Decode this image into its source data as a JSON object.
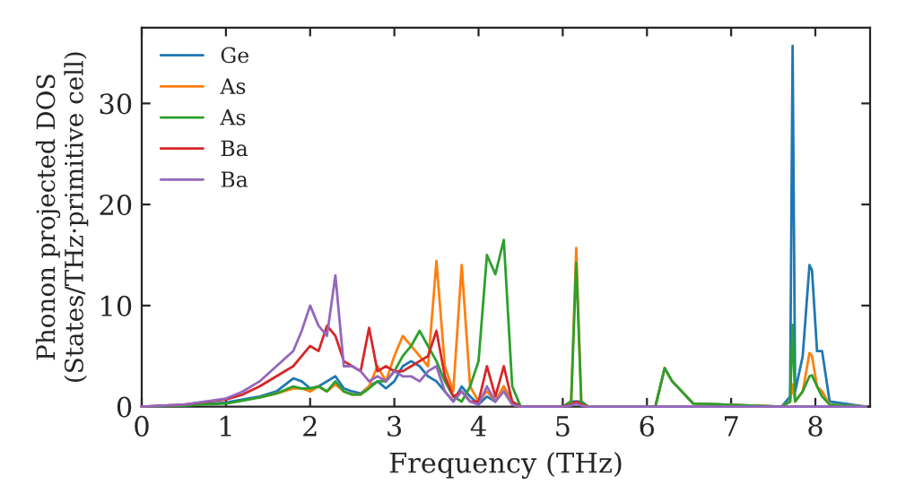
{
  "chart_data": {
    "type": "line",
    "xlabel": "Frequency (THz)",
    "ylabel": "Phonon projected DOS\n(States/THz·primitive cell)",
    "x": [
      0,
      0.5,
      1.0,
      1.2,
      1.4,
      1.6,
      1.8,
      1.9,
      2.0,
      2.1,
      2.2,
      2.3,
      2.4,
      2.5,
      2.6,
      2.7,
      2.8,
      2.9,
      3.0,
      3.1,
      3.2,
      3.3,
      3.4,
      3.5,
      3.6,
      3.7,
      3.8,
      3.9,
      4.0,
      4.1,
      4.2,
      4.3,
      4.4,
      4.5,
      5.0,
      5.1,
      5.16,
      5.22,
      5.3,
      6.1,
      6.21,
      6.3,
      6.55,
      7.6,
      7.7,
      7.73,
      7.76,
      7.85,
      7.93,
      7.96,
      8.02,
      8.08,
      8.17,
      8.6
    ],
    "series": [
      {
        "name": "Ge",
        "color": "#1f77b4",
        "values": [
          0,
          0.1,
          0.4,
          0.7,
          1.0,
          1.5,
          2.8,
          2.5,
          1.8,
          2.0,
          2.5,
          3.0,
          1.8,
          1.5,
          1.3,
          2.0,
          2.5,
          1.8,
          2.5,
          4.0,
          4.5,
          4.0,
          3.0,
          2.5,
          1.5,
          0.5,
          2.0,
          1.0,
          0.2,
          1.0,
          0.5,
          2.0,
          0.5,
          0,
          0,
          0.5,
          null,
          0.5,
          0,
          0,
          3.8,
          2.5,
          0.3,
          0,
          1,
          35.7,
          1.5,
          5,
          14,
          13.5,
          5.5,
          5.5,
          0.5,
          0
        ]
      },
      {
        "name": "As",
        "color": "#ff7f0e",
        "values": [
          null,
          null,
          null,
          null,
          0.9,
          1.3,
          1.8,
          1.8,
          1.5,
          2.0,
          1.5,
          2.2,
          1.5,
          1.2,
          1.2,
          2.0,
          4.0,
          2.5,
          5.0,
          7.0,
          6.0,
          5.0,
          4.0,
          14.4,
          4.0,
          1.5,
          14.0,
          2.0,
          0.5,
          1.5,
          0.5,
          2.0,
          0.2,
          0,
          0,
          0.5,
          15.7,
          0.5,
          0,
          0,
          3.8,
          2.5,
          0.3,
          0,
          0.5,
          2.2,
          0.5,
          1.5,
          5.3,
          5.0,
          2.0,
          1.5,
          0.2,
          0
        ]
      },
      {
        "name": "As",
        "color": "#2ca02c",
        "values": [
          0,
          0.1,
          0.3,
          0.6,
          0.9,
          1.3,
          2.0,
          1.8,
          1.8,
          2.0,
          1.5,
          2.5,
          1.5,
          1.2,
          1.2,
          1.8,
          2.5,
          2.5,
          3.5,
          5.0,
          6.0,
          7.5,
          6.0,
          4.5,
          2.5,
          1.0,
          0.5,
          2.0,
          4.5,
          15.0,
          13.1,
          16.5,
          2.0,
          0,
          0,
          0.5,
          14.2,
          0.5,
          0,
          0,
          3.8,
          2.5,
          0.3,
          0,
          0.5,
          8.1,
          0.5,
          1.5,
          3.0,
          3.1,
          2.0,
          1.0,
          0.2,
          0
        ]
      },
      {
        "name": "Ba",
        "color": "#d62728",
        "values": [
          0,
          0.2,
          0.7,
          1.2,
          2.0,
          3.0,
          4.0,
          5.0,
          6.0,
          5.5,
          8.0,
          7.0,
          4.5,
          4.0,
          3.5,
          7.8,
          3.5,
          4.0,
          3.5,
          3.5,
          4.0,
          4.5,
          5.0,
          7.5,
          3.0,
          1.0,
          1.5,
          0.5,
          0.5,
          4.0,
          1.0,
          4.0,
          0.5,
          0,
          0,
          0.2,
          0.5,
          0.2,
          0,
          null,
          null,
          null,
          null,
          null,
          null,
          null,
          null,
          null,
          null,
          null,
          null,
          null,
          null,
          null
        ]
      },
      {
        "name": "Ba",
        "color": "#9467bd",
        "values": [
          0,
          0.2,
          0.8,
          1.5,
          2.5,
          4.0,
          5.5,
          7.5,
          10.0,
          8.0,
          7.0,
          13.0,
          4.0,
          4.0,
          3.5,
          2.5,
          3.0,
          2.5,
          3.5,
          3.0,
          3.0,
          2.5,
          3.5,
          4.0,
          1.5,
          0.5,
          1.5,
          0.5,
          0.2,
          2.0,
          0.5,
          1.5,
          0.2,
          0,
          0,
          0.1,
          0.3,
          0.1,
          0,
          0,
          0,
          0,
          0,
          0,
          0,
          0,
          0,
          0,
          0,
          0,
          0,
          0,
          0,
          0
        ]
      }
    ],
    "xlim": [
      0,
      8.65
    ],
    "ylim": [
      0,
      37.5
    ],
    "xticks": [
      0,
      1,
      2,
      3,
      4,
      5,
      6,
      7,
      8
    ],
    "yticks": [
      0,
      10,
      20,
      30
    ],
    "grid": false,
    "legend": "top left",
    "line_style": "solid",
    "marker": "none"
  }
}
